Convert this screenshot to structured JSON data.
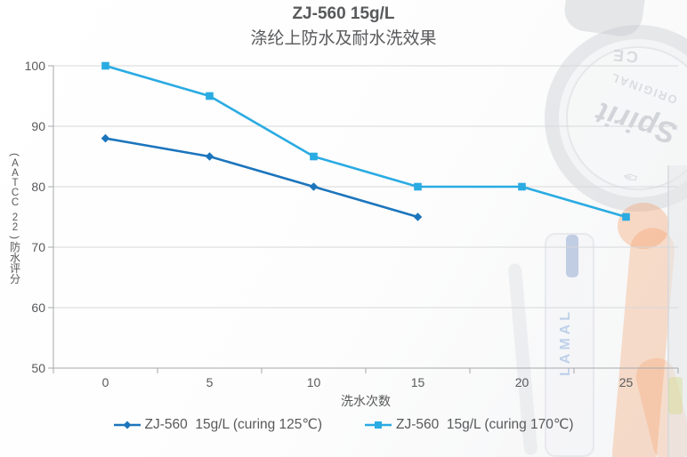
{
  "background": {
    "gauge_brand": "Spirit",
    "gauge_original": "ORIGINAL",
    "gauge_ce": "CE",
    "gauge_logo": "✑",
    "bottle_brand": "LAMAL"
  },
  "chart_data": {
    "type": "line",
    "title": "ZJ-560 15g/L",
    "subtitle": "涤纶上防水及耐水洗效果",
    "xlabel": "洗水次数",
    "ylabel": "（AATCC 22）防水评分",
    "x": [
      0,
      5,
      10,
      15,
      20,
      25
    ],
    "ylim": [
      50,
      100
    ],
    "yticks": [
      50,
      60,
      70,
      80,
      90,
      100
    ],
    "grid": "horizontal",
    "legend_position": "bottom",
    "series": [
      {
        "name": "ZJ-560  15g/L (curing 125℃)",
        "color": "#1c75bc",
        "marker": "diamond",
        "values": [
          88,
          85,
          80,
          75,
          null,
          null
        ]
      },
      {
        "name": "ZJ-560  15g/L (curing 170℃)",
        "color": "#2aabe2",
        "marker": "square",
        "values": [
          100,
          95,
          85,
          80,
          80,
          75
        ]
      }
    ],
    "colors": {
      "axis": "#a6a8ab",
      "gridline": "#d7d8da",
      "text": "#58595b"
    }
  }
}
